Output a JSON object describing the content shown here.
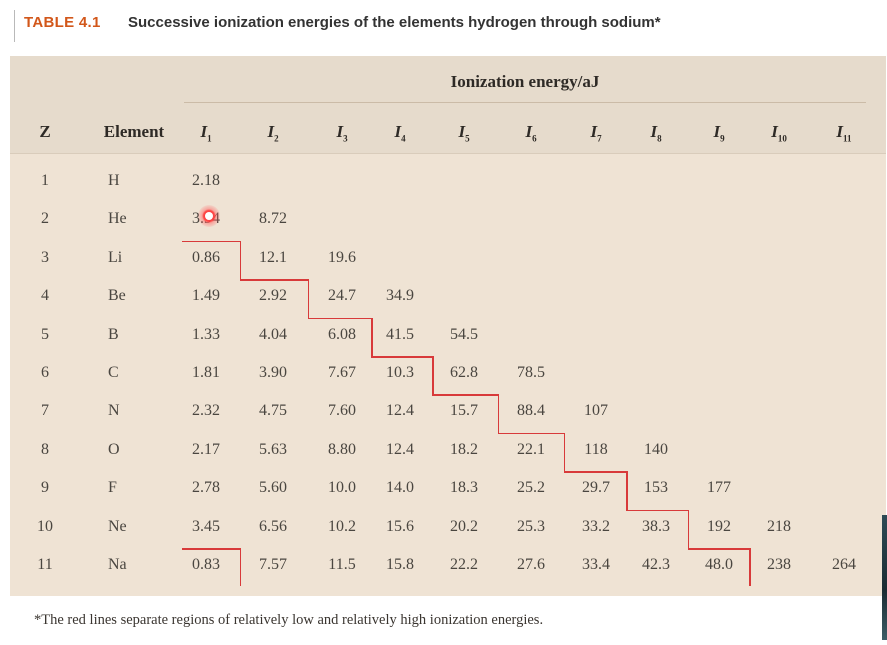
{
  "caption": {
    "label": "TABLE 4.1",
    "text": "Successive ionization energies of the elements hydrogen through sodium*"
  },
  "table": {
    "group_header": "Ionization energy/aJ",
    "z_header": "Z",
    "element_header": "Element",
    "ie_headers": [
      {
        "base": "I",
        "sub": "1"
      },
      {
        "base": "I",
        "sub": "2"
      },
      {
        "base": "I",
        "sub": "3"
      },
      {
        "base": "I",
        "sub": "4"
      },
      {
        "base": "I",
        "sub": "5"
      },
      {
        "base": "I",
        "sub": "6"
      },
      {
        "base": "I",
        "sub": "7"
      },
      {
        "base": "I",
        "sub": "8"
      },
      {
        "base": "I",
        "sub": "9"
      },
      {
        "base": "I",
        "sub": "10"
      },
      {
        "base": "I",
        "sub": "11"
      }
    ],
    "rows": [
      {
        "z": "1",
        "element": "H",
        "values": [
          "2.18"
        ]
      },
      {
        "z": "2",
        "element": "He",
        "values": [
          "3.94",
          "8.72"
        ]
      },
      {
        "z": "3",
        "element": "Li",
        "values": [
          "0.86",
          "12.1",
          "19.6"
        ]
      },
      {
        "z": "4",
        "element": "Be",
        "values": [
          "1.49",
          "2.92",
          "24.7",
          "34.9"
        ]
      },
      {
        "z": "5",
        "element": "B",
        "values": [
          "1.33",
          "4.04",
          "6.08",
          "41.5",
          "54.5"
        ]
      },
      {
        "z": "6",
        "element": "C",
        "values": [
          "1.81",
          "3.90",
          "7.67",
          "10.3",
          "62.8",
          "78.5"
        ]
      },
      {
        "z": "7",
        "element": "N",
        "values": [
          "2.32",
          "4.75",
          "7.60",
          "12.4",
          "15.7",
          "88.4",
          "107"
        ]
      },
      {
        "z": "8",
        "element": "O",
        "values": [
          "2.17",
          "5.63",
          "8.80",
          "12.4",
          "18.2",
          "22.1",
          "118",
          "140"
        ]
      },
      {
        "z": "9",
        "element": "F",
        "values": [
          "2.78",
          "5.60",
          "10.0",
          "14.0",
          "18.3",
          "25.2",
          "29.7",
          "153",
          "177"
        ]
      },
      {
        "z": "10",
        "element": "Ne",
        "values": [
          "3.45",
          "6.56",
          "10.2",
          "15.6",
          "20.2",
          "25.3",
          "33.2",
          "38.3",
          "192",
          "218"
        ]
      },
      {
        "z": "11",
        "element": "Na",
        "values": [
          "0.83",
          "7.57",
          "11.5",
          "15.8",
          "22.2",
          "27.6",
          "33.4",
          "42.3",
          "48.0",
          "238",
          "264"
        ]
      }
    ]
  },
  "footnote": "*The red lines separate regions of relatively low and relatively high ionization energies.",
  "colors": {
    "caption_label": "#d2571a",
    "table_background": "#efe3d4",
    "header_band": "#e6dbcc",
    "separator_line": "#d83a3a"
  }
}
